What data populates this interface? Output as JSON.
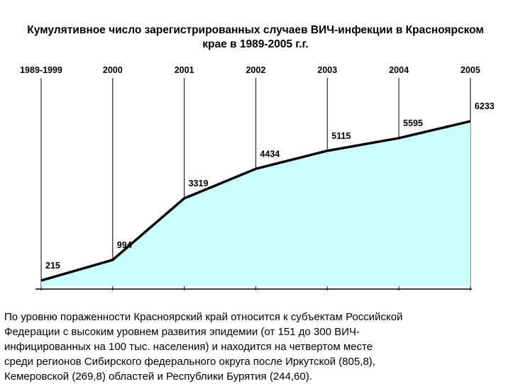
{
  "title": {
    "line1": "Кумулятивное число зарегистрированных случаев ВИЧ-инфекции в Красноярском",
    "line2": "крае в 1989-2005 г.г."
  },
  "chart_data": {
    "type": "area",
    "categories": [
      "1989-1999",
      "2000",
      "2001",
      "2002",
      "2003",
      "2004",
      "2005"
    ],
    "values": [
      215,
      994,
      3319,
      4434,
      5115,
      5595,
      6233
    ],
    "ylim": [
      0,
      7600
    ],
    "fill_color": "#ccffff",
    "line_color": "#000000",
    "grid": "vertical"
  },
  "caption": [
    "По уровню пораженности Красноярский край относится к субъектам Российской",
    "Федерации с высоким уровнем развития эпидемии (от 151 до 300 ВИЧ-",
    "инфицированных на 100 тыс. населения) и находится на четвертом месте",
    "среди регионов Сибирского федерального округа после Иркутской (805,8),",
    "Кемеровской (269,8) областей  и Республики Бурятия (244,60)."
  ]
}
